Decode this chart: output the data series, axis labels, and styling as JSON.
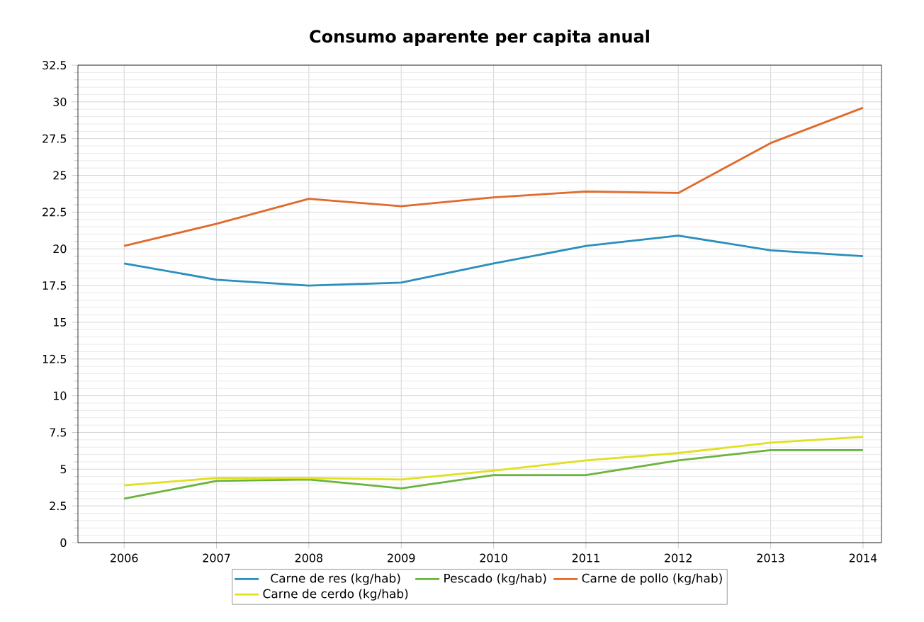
{
  "chart_data": {
    "type": "line",
    "title": "Consumo aparente per capita anual",
    "x": [
      2006,
      2007,
      2008,
      2009,
      2010,
      2011,
      2012,
      2013,
      2014
    ],
    "series": [
      {
        "name": "Carne de res (kg/hab)",
        "color": "#2a8fbd",
        "values": [
          19.0,
          17.9,
          17.5,
          17.7,
          19.0,
          20.2,
          20.9,
          19.9,
          19.5
        ]
      },
      {
        "name": "Pescado (kg/hab)",
        "color": "#6ab43e",
        "values": [
          3.0,
          4.2,
          4.3,
          3.7,
          4.6,
          4.6,
          5.6,
          6.3,
          6.3
        ]
      },
      {
        "name": "Carne de pollo (kg/hab)",
        "color": "#e06a2c",
        "values": [
          20.2,
          21.7,
          23.4,
          22.9,
          23.5,
          23.9,
          23.8,
          27.2,
          29.6
        ]
      },
      {
        "name": "Carne de cerdo (kg/hab)",
        "color": "#e0e020",
        "values": [
          3.9,
          4.4,
          4.4,
          4.3,
          4.9,
          5.6,
          6.1,
          6.8,
          7.2
        ]
      }
    ],
    "xlim": [
      2005.5,
      2014.2
    ],
    "xticks": [
      2006,
      2007,
      2008,
      2009,
      2010,
      2011,
      2012,
      2013,
      2014
    ],
    "ylim": [
      0,
      32.5
    ],
    "yticks": [
      0,
      2.5,
      5,
      7.5,
      10,
      12.5,
      15,
      17.5,
      20,
      22.5,
      25,
      27.5,
      30,
      32.5
    ],
    "grid": true,
    "legend": "bottom",
    "marker": "none",
    "line_style": "solid"
  }
}
